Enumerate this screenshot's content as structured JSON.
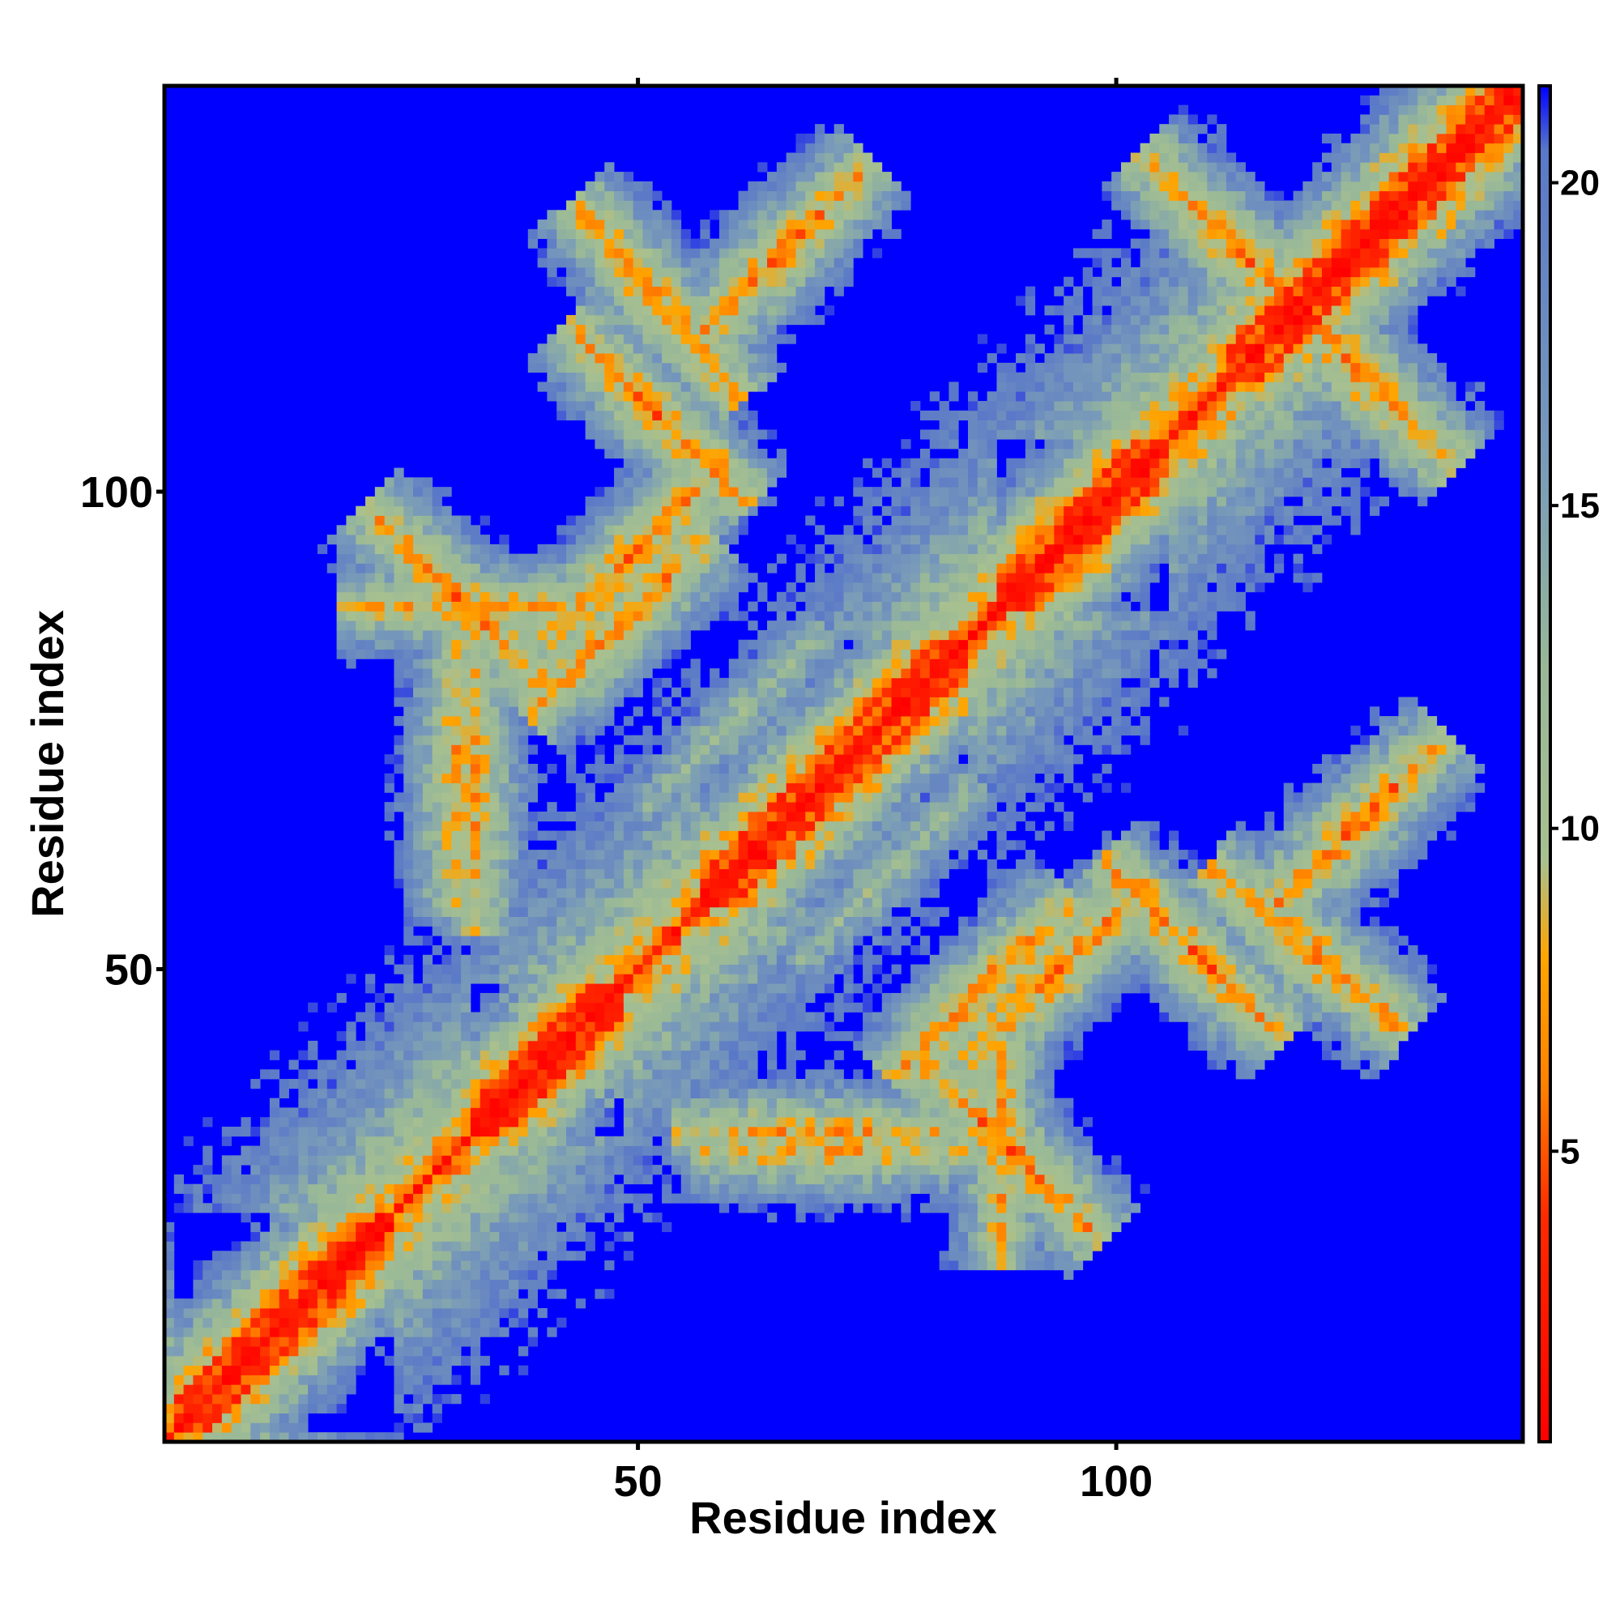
{
  "chart_data": {
    "type": "heatmap",
    "title": "",
    "xlabel": "Residue index",
    "ylabel": "Residue index",
    "x_ticks": [
      50,
      100
    ],
    "y_ticks": [
      50,
      100
    ],
    "xlim": [
      1,
      142
    ],
    "ylim": [
      1,
      142
    ],
    "n_residues": 142,
    "colorbar": {
      "range": [
        0.5,
        21.5
      ],
      "ticks": [
        5,
        10,
        15,
        20
      ],
      "stops": [
        {
          "value": 0.5,
          "color": "#ff0000"
        },
        {
          "value": 4.0,
          "color": "#ff2a00"
        },
        {
          "value": 6.0,
          "color": "#ff8000"
        },
        {
          "value": 8.0,
          "color": "#ffa500"
        },
        {
          "value": 9.5,
          "color": "#a8c090"
        },
        {
          "value": 12.5,
          "color": "#98b898"
        },
        {
          "value": 15.5,
          "color": "#7a9cb8"
        },
        {
          "value": 20.5,
          "color": "#5a78c8"
        },
        {
          "value": 21.5,
          "color": "#0000ff"
        }
      ]
    },
    "background_color": "#0000ff",
    "cutoff": 21,
    "structure": {
      "helices": [
        [
          2,
          24
        ],
        [
          33,
          48
        ],
        [
          57,
          84
        ],
        [
          88,
          105
        ],
        [
          112,
          142
        ]
      ],
      "contact_bands": [
        {
          "i0": 52,
          "j0": 120,
          "di": 5,
          "dj": -6,
          "d0": 6
        },
        {
          "i0": 48,
          "j0": 86,
          "di": 5,
          "dj": 5,
          "d0": 6
        },
        {
          "i0": 94,
          "j0": 50,
          "di": -7,
          "dj": -7,
          "d0": 6
        },
        {
          "i0": 108,
          "j0": 52,
          "di": 5,
          "dj": -5,
          "d0": 6
        },
        {
          "i0": 112,
          "j0": 126,
          "di": 5,
          "dj": -5,
          "d0": 6
        },
        {
          "i0": 60,
          "j0": 76,
          "di": 8,
          "dj": 8,
          "d0": 11
        },
        {
          "i0": 31,
          "j0": 89,
          "di": 2,
          "dj": -2,
          "d0": 6
        },
        {
          "i0": 31,
          "j0": 70,
          "di": 0,
          "dj": 2,
          "d0": 7
        },
        {
          "i0": 68,
          "j0": 33,
          "di": 2,
          "dj": 0,
          "d0": 7
        },
        {
          "i0": 88,
          "j0": 33,
          "di": 0,
          "dj": 2,
          "d0": 7
        },
        {
          "i0": 125,
          "j0": 65,
          "di": 3,
          "dj": 3,
          "d0": 6
        }
      ]
    }
  }
}
